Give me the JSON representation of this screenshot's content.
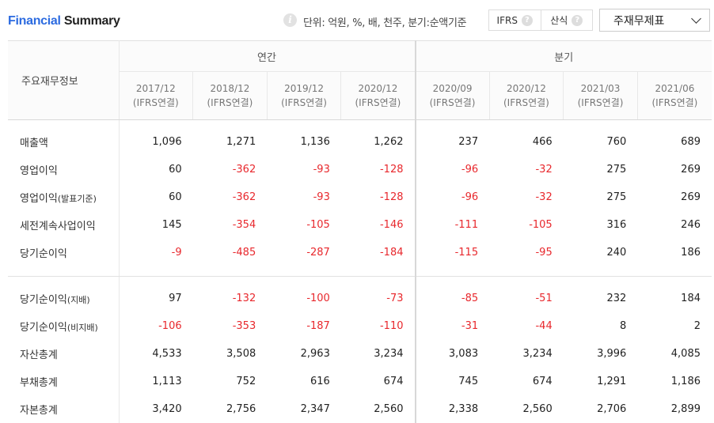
{
  "header": {
    "title_part1": "Financial",
    "title_part2": "Summary",
    "info_icon": "i",
    "unit_text": "단위: 억원, %, 배, 천주, 분기:순액기준",
    "toggle": [
      {
        "label": "IFRS",
        "help": "?"
      },
      {
        "label": "산식",
        "help": "?"
      }
    ],
    "select_value": "주재무제표"
  },
  "table": {
    "row_header": "주요재무정보",
    "group_annual": "연간",
    "group_quarterly": "분기",
    "columns": [
      {
        "period": "2017/12",
        "basis": "(IFRS연결)"
      },
      {
        "period": "2018/12",
        "basis": "(IFRS연결)"
      },
      {
        "period": "2019/12",
        "basis": "(IFRS연결)"
      },
      {
        "period": "2020/12",
        "basis": "(IFRS연결)"
      },
      {
        "period": "2020/09",
        "basis": "(IFRS연결)"
      },
      {
        "period": "2020/12",
        "basis": "(IFRS연결)"
      },
      {
        "period": "2021/03",
        "basis": "(IFRS연결)"
      },
      {
        "period": "2021/06",
        "basis": "(IFRS연결)"
      }
    ],
    "rows": [
      {
        "label": "매출액",
        "values": [
          "1,096",
          "1,271",
          "1,136",
          "1,262",
          "237",
          "466",
          "760",
          "689"
        ]
      },
      {
        "label": "영업이익",
        "values": [
          "60",
          "-362",
          "-93",
          "-128",
          "-96",
          "-32",
          "275",
          "269"
        ]
      },
      {
        "label": "영업이익",
        "label_suffix": "(발표기준)",
        "values": [
          "60",
          "-362",
          "-93",
          "-128",
          "-96",
          "-32",
          "275",
          "269"
        ]
      },
      {
        "label": "세전계속사업이익",
        "values": [
          "145",
          "-354",
          "-105",
          "-146",
          "-111",
          "-105",
          "316",
          "246"
        ]
      },
      {
        "label": "당기순이익",
        "values": [
          "-9",
          "-485",
          "-287",
          "-184",
          "-115",
          "-95",
          "240",
          "186"
        ]
      },
      {
        "label": "당기순이익",
        "label_suffix": "(지배)",
        "values": [
          "97",
          "-132",
          "-100",
          "-73",
          "-85",
          "-51",
          "232",
          "184"
        ]
      },
      {
        "label": "당기순이익",
        "label_suffix": "(비지배)",
        "values": [
          "-106",
          "-353",
          "-187",
          "-110",
          "-31",
          "-44",
          "8",
          "2"
        ]
      },
      {
        "label": "자산총계",
        "values": [
          "4,533",
          "3,508",
          "2,963",
          "3,234",
          "3,083",
          "3,234",
          "3,996",
          "4,085"
        ]
      },
      {
        "label": "부채총계",
        "values": [
          "1,113",
          "752",
          "616",
          "674",
          "745",
          "674",
          "1,291",
          "1,186"
        ]
      },
      {
        "label": "자본총계",
        "values": [
          "3,420",
          "2,756",
          "2,347",
          "2,560",
          "2,338",
          "2,560",
          "2,706",
          "2,899"
        ]
      }
    ]
  },
  "colors": {
    "title_accent": "#2c6be0",
    "negative": "#e8282d"
  }
}
